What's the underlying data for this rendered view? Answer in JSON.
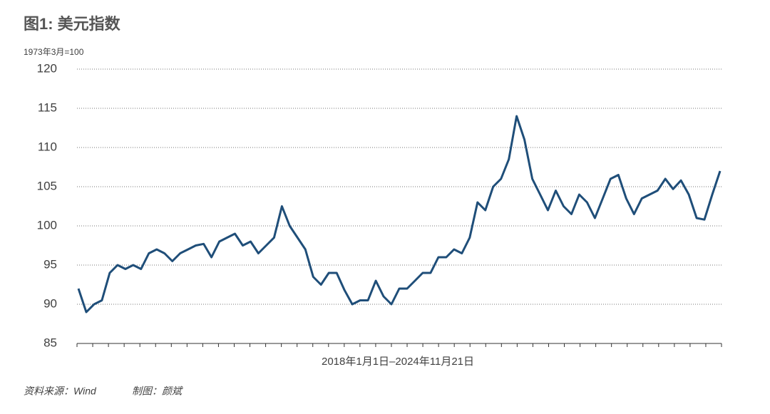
{
  "chart_data": {
    "type": "line",
    "title": "图1: 美元指数",
    "y_label": "1973年3月=100",
    "x_label": "2018年1月1日–2024年11月21日",
    "source": "资料来源：Wind",
    "author": "制图：颜斌",
    "ylim": [
      85,
      120
    ],
    "yticks": [
      85,
      90,
      95,
      100,
      105,
      110,
      115,
      120
    ],
    "grid": true,
    "series": [
      {
        "name": "美元指数",
        "color": "#1f4e79",
        "values": [
          92,
          89,
          90,
          90.5,
          94,
          95,
          94.5,
          95,
          94.5,
          96.5,
          97,
          96.5,
          95.5,
          96.5,
          97,
          97.5,
          97.7,
          96,
          98,
          98.5,
          99,
          97.5,
          98,
          96.5,
          97.5,
          98.5,
          102.5,
          100,
          98.5,
          97,
          93.5,
          92.5,
          94,
          94,
          91.8,
          90,
          90.5,
          90.5,
          93,
          91,
          90,
          92,
          92,
          93,
          94,
          94,
          96,
          96,
          97,
          96.5,
          98.5,
          103,
          102,
          105,
          106,
          108.5,
          114,
          111,
          106,
          104,
          102,
          104.5,
          102.5,
          101.5,
          104,
          103,
          101,
          103.5,
          106,
          106.5,
          103.5,
          101.5,
          103.5,
          104,
          104.5,
          106,
          104.7,
          105.8,
          104,
          101,
          100.8,
          104,
          107
        ]
      }
    ]
  }
}
